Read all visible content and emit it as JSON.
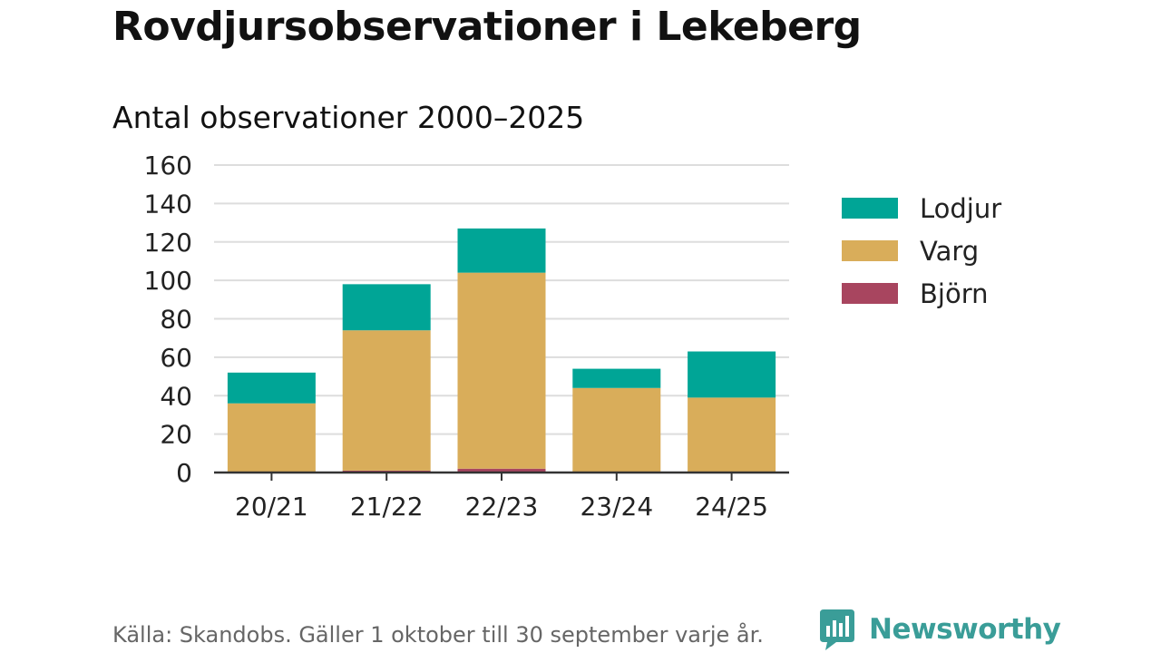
{
  "title": "Rovdjursobservationer i Lekeberg",
  "subtitle": "Antal observationer 2000–2025",
  "chart_data": {
    "type": "bar",
    "stacked": true,
    "categories": [
      "20/21",
      "21/22",
      "22/23",
      "23/24",
      "24/25"
    ],
    "series": [
      {
        "name": "Björn",
        "color": "#a8455f",
        "values": [
          0,
          1,
          2,
          0,
          0
        ]
      },
      {
        "name": "Varg",
        "color": "#d9ad5a",
        "values": [
          36,
          73,
          102,
          44,
          39
        ]
      },
      {
        "name": "Lodjur",
        "color": "#00a596",
        "values": [
          16,
          24,
          23,
          10,
          24
        ]
      }
    ],
    "legend_order": [
      "Lodjur",
      "Varg",
      "Björn"
    ],
    "y_ticks": [
      0,
      20,
      40,
      60,
      80,
      100,
      120,
      140,
      160
    ],
    "ylim": [
      0,
      160
    ],
    "xlabel": "",
    "ylabel": "",
    "legend_position": "right"
  },
  "footer": {
    "source": "Källa: Skandobs. Gäller 1 oktober till 30 september varje år."
  },
  "logo": {
    "text": "Newsworthy",
    "icon": "newsworthy-logo-icon",
    "color": "#3a9d98"
  }
}
